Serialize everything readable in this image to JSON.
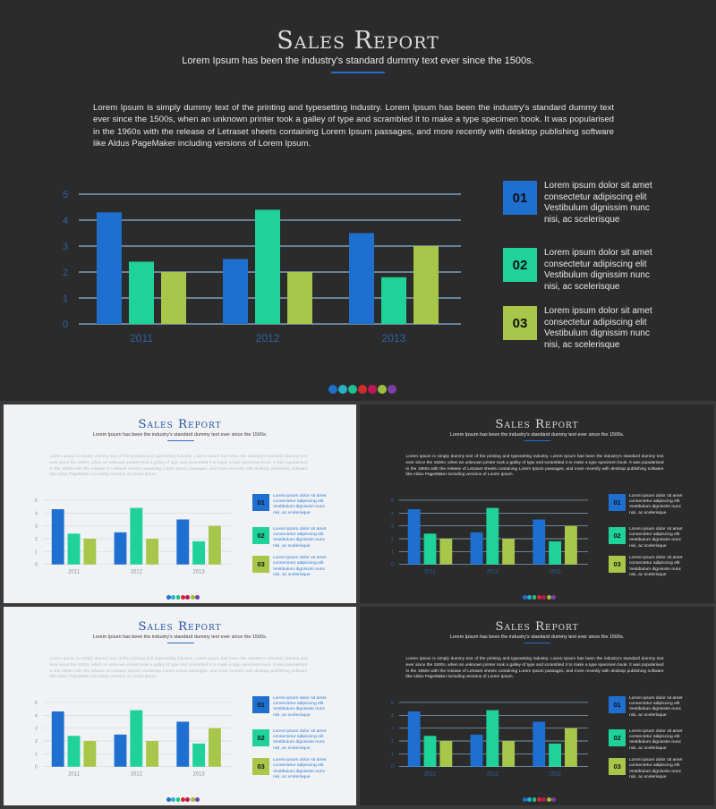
{
  "slide": {
    "title": "Sales Report",
    "subtitle": "Lorem Ipsum has been the industry's standard dummy text ever since the 1500s.",
    "body": "Lorem Ipsum is simply dummy text of the printing and typesetting industry. Lorem Ipsum has been the industry's standard dummy text ever since the 1500s, when an unknown printer took a galley of type and scrambled it to make a type specimen book. It was popularised in the 1960s with the release of Letraset sheets containing Lorem Ipsum passages, and more recently with desktop publishing software like Aldus PageMaker including versions of Lorem Ipsum.",
    "legend": [
      {
        "number": "01",
        "text": "Lorem ipsum dolor sit amet consectetur adipiscing elit Vestibulum dignissim nunc nisi, ac scelerisque",
        "color": "#1f6fd1"
      },
      {
        "number": "02",
        "text": "Lorem ipsum dolor sit amet consectetur adipiscing elit Vestibulum dignissim nunc nisi, ac scelerisque",
        "color": "#1ed29a"
      },
      {
        "number": "03",
        "text": "Lorem ipsum dolor sit amet consectetur adipiscing elit Vestibulum dignissim nunc nisi, ac scelerisque",
        "color": "#a8c64a"
      }
    ],
    "dots": [
      "#1f6fd1",
      "#2ab0c9",
      "#1fbf8f",
      "#d42a2a",
      "#c0155a",
      "#9bbf3a",
      "#7b3fa6"
    ]
  },
  "chart_data": {
    "type": "bar",
    "categories": [
      "2011",
      "2012",
      "2013"
    ],
    "series": [
      {
        "values": [
          4.3,
          2.5,
          3.5
        ],
        "color": "#1f6fd1"
      },
      {
        "values": [
          2.4,
          4.4,
          1.8
        ],
        "color": "#1ed29a"
      },
      {
        "values": [
          2.0,
          2.0,
          3.0
        ],
        "color": "#a8c64a"
      }
    ],
    "yticks": [
      "0",
      "1",
      "2",
      "3",
      "4",
      "5"
    ],
    "ylim": [
      0,
      5
    ],
    "grid": true
  }
}
